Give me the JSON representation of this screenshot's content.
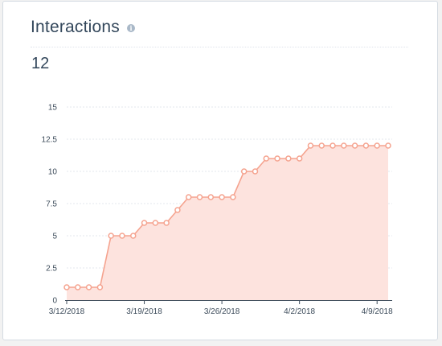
{
  "title": "Interactions",
  "value": "12",
  "colors": {
    "line": "#f5a38f",
    "area": "#fde3de",
    "point_fill": "#ffffff",
    "grid": "#e3e7ec",
    "axis": "#3c4b5a"
  },
  "chart_data": {
    "type": "area",
    "title": "Interactions",
    "xlabel": "",
    "ylabel": "",
    "ylim": [
      0,
      15
    ],
    "yticks": [
      "0",
      "2.5",
      "5",
      "7.5",
      "10",
      "12.5",
      "15"
    ],
    "xticks": [
      "3/12/2018",
      "3/19/2018",
      "3/26/2018",
      "4/2/2018",
      "4/9/2018"
    ],
    "grid": true,
    "x": [
      "3/12/2018",
      "3/13/2018",
      "3/14/2018",
      "3/15/2018",
      "3/16/2018",
      "3/17/2018",
      "3/18/2018",
      "3/19/2018",
      "3/20/2018",
      "3/21/2018",
      "3/22/2018",
      "3/23/2018",
      "3/24/2018",
      "3/25/2018",
      "3/26/2018",
      "3/27/2018",
      "3/28/2018",
      "3/29/2018",
      "3/30/2018",
      "3/31/2018",
      "4/1/2018",
      "4/2/2018",
      "4/3/2018",
      "4/4/2018",
      "4/5/2018",
      "4/6/2018",
      "4/7/2018",
      "4/8/2018",
      "4/9/2018",
      "4/10/2018"
    ],
    "series": [
      {
        "values": [
          1,
          1,
          1,
          1,
          5,
          5,
          5,
          6,
          6,
          6,
          7,
          8,
          8,
          8,
          8,
          8,
          10,
          10,
          11,
          11,
          11,
          11,
          12,
          12,
          12,
          12,
          12,
          12,
          12,
          12
        ]
      }
    ]
  }
}
